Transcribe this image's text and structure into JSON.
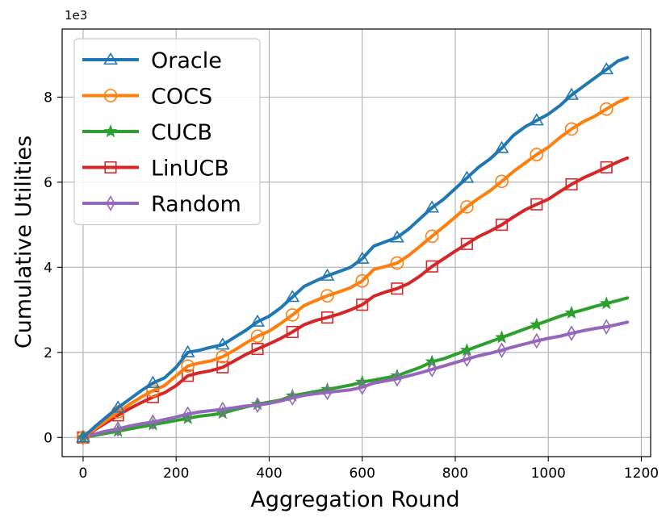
{
  "chart_data": {
    "type": "line",
    "title": "",
    "xlabel": "Aggregation Round",
    "ylabel": "Cumulative Utilities",
    "y_multiplier_label": "1e3",
    "xlim": [
      -45,
      1220
    ],
    "ylim": [
      -0.45,
      9.6
    ],
    "xticks": [
      0,
      200,
      400,
      600,
      800,
      1000,
      1200
    ],
    "yticks": [
      0,
      2,
      4,
      6,
      8
    ],
    "grid": true,
    "legend_position": "top-left",
    "series": [
      {
        "name": "Oracle",
        "color": "#1f77b4",
        "marker": "triangle",
        "x": [
          0,
          25,
          50,
          75,
          100,
          125,
          150,
          175,
          200,
          225,
          250,
          275,
          300,
          325,
          350,
          375,
          400,
          425,
          450,
          475,
          500,
          525,
          550,
          575,
          600,
          625,
          650,
          675,
          700,
          725,
          750,
          775,
          800,
          825,
          850,
          875,
          900,
          925,
          950,
          975,
          1000,
          1025,
          1050,
          1075,
          1100,
          1125,
          1150,
          1170
        ],
        "y": [
          0,
          0.25,
          0.48,
          0.7,
          0.9,
          1.1,
          1.28,
          1.4,
          1.65,
          2.0,
          2.05,
          2.12,
          2.18,
          2.35,
          2.52,
          2.72,
          2.85,
          3.05,
          3.3,
          3.55,
          3.68,
          3.8,
          3.9,
          4.0,
          4.2,
          4.5,
          4.6,
          4.7,
          4.9,
          5.15,
          5.4,
          5.6,
          5.85,
          6.1,
          6.35,
          6.55,
          6.8,
          7.1,
          7.3,
          7.45,
          7.6,
          7.8,
          8.05,
          8.25,
          8.45,
          8.65,
          8.85,
          8.93
        ],
        "marker_indices": [
          0,
          3,
          6,
          9,
          12,
          15,
          18,
          21,
          24,
          27,
          30,
          33,
          36,
          39,
          42,
          45
        ]
      },
      {
        "name": "COCS",
        "color": "#ff7f0e",
        "marker": "circle",
        "x": [
          0,
          25,
          50,
          75,
          100,
          125,
          150,
          175,
          200,
          225,
          250,
          275,
          300,
          325,
          350,
          375,
          400,
          425,
          450,
          475,
          500,
          525,
          550,
          575,
          600,
          625,
          650,
          675,
          700,
          725,
          750,
          775,
          800,
          825,
          850,
          875,
          900,
          925,
          950,
          975,
          1000,
          1025,
          1050,
          1075,
          1100,
          1125,
          1150,
          1170
        ],
        "y": [
          0,
          0.2,
          0.4,
          0.6,
          0.78,
          0.95,
          1.1,
          1.22,
          1.45,
          1.68,
          1.75,
          1.8,
          1.9,
          2.05,
          2.22,
          2.38,
          2.5,
          2.68,
          2.88,
          3.1,
          3.22,
          3.33,
          3.42,
          3.52,
          3.68,
          3.95,
          4.02,
          4.1,
          4.28,
          4.5,
          4.73,
          4.95,
          5.18,
          5.42,
          5.62,
          5.8,
          6.02,
          6.25,
          6.45,
          6.65,
          6.82,
          7.05,
          7.25,
          7.42,
          7.55,
          7.72,
          7.88,
          7.98
        ],
        "marker_indices": [
          0,
          3,
          6,
          9,
          12,
          15,
          18,
          21,
          24,
          27,
          30,
          33,
          36,
          39,
          42,
          45
        ]
      },
      {
        "name": "CUCB",
        "color": "#2ca02c",
        "marker": "star",
        "x": [
          0,
          25,
          50,
          75,
          100,
          125,
          150,
          175,
          200,
          225,
          250,
          275,
          300,
          325,
          350,
          375,
          400,
          425,
          450,
          475,
          500,
          525,
          550,
          575,
          600,
          625,
          650,
          675,
          700,
          725,
          750,
          775,
          800,
          825,
          850,
          875,
          900,
          925,
          950,
          975,
          1000,
          1025,
          1050,
          1075,
          1100,
          1125,
          1150,
          1170
        ],
        "y": [
          0,
          0.05,
          0.1,
          0.15,
          0.2,
          0.25,
          0.3,
          0.35,
          0.4,
          0.45,
          0.5,
          0.53,
          0.57,
          0.65,
          0.72,
          0.78,
          0.83,
          0.88,
          0.98,
          1.03,
          1.08,
          1.13,
          1.18,
          1.23,
          1.3,
          1.35,
          1.4,
          1.45,
          1.55,
          1.65,
          1.78,
          1.85,
          1.95,
          2.05,
          2.15,
          2.25,
          2.35,
          2.45,
          2.55,
          2.65,
          2.75,
          2.85,
          2.93,
          3.0,
          3.08,
          3.15,
          3.22,
          3.28
        ],
        "marker_indices": [
          0,
          3,
          6,
          9,
          12,
          15,
          18,
          21,
          24,
          27,
          30,
          33,
          36,
          39,
          42,
          45
        ]
      },
      {
        "name": "LinUCB",
        "color": "#d62728",
        "marker": "square",
        "x": [
          0,
          25,
          50,
          75,
          100,
          125,
          150,
          175,
          200,
          225,
          250,
          275,
          300,
          325,
          350,
          375,
          400,
          425,
          450,
          475,
          500,
          525,
          550,
          575,
          600,
          625,
          650,
          675,
          700,
          725,
          750,
          775,
          800,
          825,
          850,
          875,
          900,
          925,
          950,
          975,
          1000,
          1025,
          1050,
          1075,
          1100,
          1125,
          1150,
          1170
        ],
        "y": [
          0,
          0.18,
          0.35,
          0.52,
          0.68,
          0.82,
          0.95,
          1.05,
          1.22,
          1.45,
          1.52,
          1.57,
          1.65,
          1.8,
          1.95,
          2.08,
          2.2,
          2.33,
          2.48,
          2.65,
          2.75,
          2.82,
          2.9,
          3.0,
          3.12,
          3.32,
          3.42,
          3.5,
          3.62,
          3.8,
          4.02,
          4.2,
          4.38,
          4.55,
          4.72,
          4.85,
          5.0,
          5.18,
          5.35,
          5.48,
          5.6,
          5.78,
          5.95,
          6.1,
          6.22,
          6.35,
          6.48,
          6.57
        ],
        "marker_indices": [
          0,
          3,
          6,
          9,
          12,
          15,
          18,
          21,
          24,
          27,
          30,
          33,
          36,
          39,
          42,
          45
        ]
      },
      {
        "name": "Random",
        "color": "#9467bd",
        "marker": "diamond",
        "x": [
          0,
          25,
          50,
          75,
          100,
          125,
          150,
          175,
          200,
          225,
          250,
          275,
          300,
          325,
          350,
          375,
          400,
          425,
          450,
          475,
          500,
          525,
          550,
          575,
          600,
          625,
          650,
          675,
          700,
          725,
          750,
          775,
          800,
          825,
          850,
          875,
          900,
          925,
          950,
          975,
          1000,
          1025,
          1050,
          1075,
          1100,
          1125,
          1150,
          1170
        ],
        "y": [
          0,
          0.08,
          0.15,
          0.2,
          0.27,
          0.32,
          0.36,
          0.42,
          0.48,
          0.55,
          0.6,
          0.63,
          0.66,
          0.7,
          0.74,
          0.76,
          0.8,
          0.86,
          0.93,
          0.99,
          1.03,
          1.06,
          1.09,
          1.12,
          1.18,
          1.28,
          1.33,
          1.38,
          1.45,
          1.52,
          1.6,
          1.68,
          1.76,
          1.84,
          1.92,
          1.98,
          2.05,
          2.13,
          2.2,
          2.27,
          2.33,
          2.38,
          2.45,
          2.51,
          2.56,
          2.6,
          2.66,
          2.71
        ],
        "marker_indices": [
          0,
          3,
          6,
          9,
          12,
          15,
          18,
          21,
          24,
          27,
          30,
          33,
          36,
          39,
          42,
          45
        ]
      }
    ]
  }
}
